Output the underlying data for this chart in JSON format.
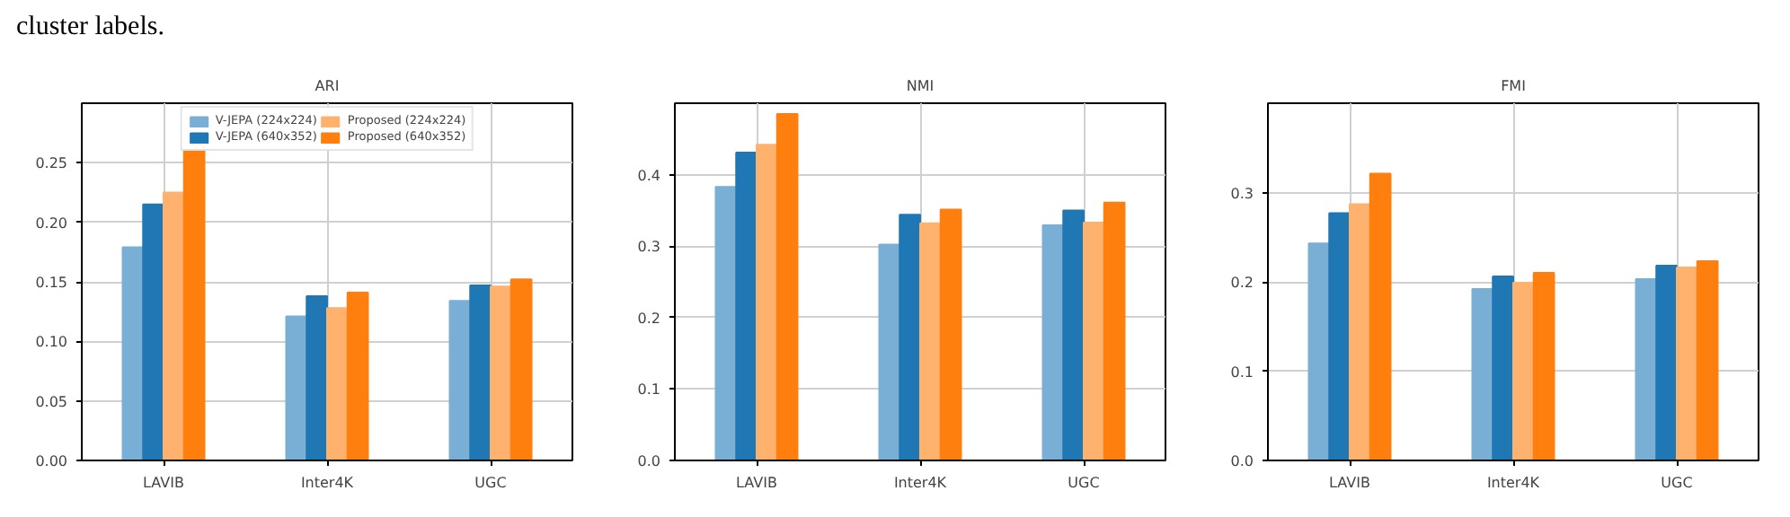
{
  "chart_data": [
    {
      "type": "bar",
      "title": "ARI",
      "categories": [
        "LAVIB",
        "Inter4K",
        "UGC"
      ],
      "annotations": [
        "cluster labels."
      ],
      "series": [
        {
          "name": "V-JEPA (224x224)",
          "color": "#7aafd5",
          "values": [
            0.179,
            0.121,
            0.134
          ]
        },
        {
          "name": "V-JEPA (640x352)",
          "color": "#1f77b4",
          "values": [
            0.215,
            0.138,
            0.147
          ]
        },
        {
          "name": "Proposed (224x224)",
          "color": "#ffb26e",
          "values": [
            0.225,
            0.128,
            0.146
          ]
        },
        {
          "name": "Proposed (640x352)",
          "color": "#ff7f0e",
          "values": [
            0.261,
            0.141,
            0.152
          ]
        }
      ],
      "ylim": [
        0,
        0.3
      ],
      "yticks": [
        {
          "value": 0,
          "label": "0.00"
        },
        {
          "value": 0.05,
          "label": "0.05"
        },
        {
          "value": 0.1,
          "label": "0.10"
        },
        {
          "value": 0.15,
          "label": "0.15"
        },
        {
          "value": 0.2,
          "label": "0.20"
        },
        {
          "value": 0.25,
          "label": "0.25"
        }
      ],
      "grid": true,
      "legend": "top"
    },
    {
      "type": "bar",
      "title": "NMI",
      "categories": [
        "LAVIB",
        "Inter4K",
        "UGC"
      ],
      "series": [
        {
          "color": "#7aafd5",
          "values": [
            0.383,
            0.302,
            0.329
          ]
        },
        {
          "color": "#1f77b4",
          "values": [
            0.431,
            0.344,
            0.35
          ]
        },
        {
          "color": "#ffb26e",
          "values": [
            0.442,
            0.332,
            0.333
          ]
        },
        {
          "color": "#ff7f0e",
          "values": [
            0.485,
            0.351,
            0.361
          ]
        }
      ],
      "ylim": [
        0,
        0.5
      ],
      "yticks": [
        {
          "value": 0,
          "label": "0.0"
        },
        {
          "value": 0.1,
          "label": "0.1"
        },
        {
          "value": 0.2,
          "label": "0.2"
        },
        {
          "value": 0.3,
          "label": "0.3"
        },
        {
          "value": 0.4,
          "label": "0.4"
        }
      ],
      "grid": true
    },
    {
      "type": "bar",
      "title": "FMI",
      "categories": [
        "LAVIB",
        "Inter4K",
        "UGC"
      ],
      "series": [
        {
          "color": "#7aafd5",
          "values": [
            0.243,
            0.192,
            0.203
          ]
        },
        {
          "color": "#1f77b4",
          "values": [
            0.277,
            0.206,
            0.218
          ]
        },
        {
          "color": "#ffb26e",
          "values": [
            0.287,
            0.199,
            0.216
          ]
        },
        {
          "color": "#ff7f0e",
          "values": [
            0.321,
            0.21,
            0.223
          ]
        }
      ],
      "ylim": [
        0,
        0.4
      ],
      "yticks": [
        {
          "value": 0,
          "label": "0.0"
        },
        {
          "value": 0.1,
          "label": "0.1"
        },
        {
          "value": 0.2,
          "label": "0.2"
        },
        {
          "value": 0.3,
          "label": "0.3"
        }
      ],
      "grid": true
    }
  ]
}
